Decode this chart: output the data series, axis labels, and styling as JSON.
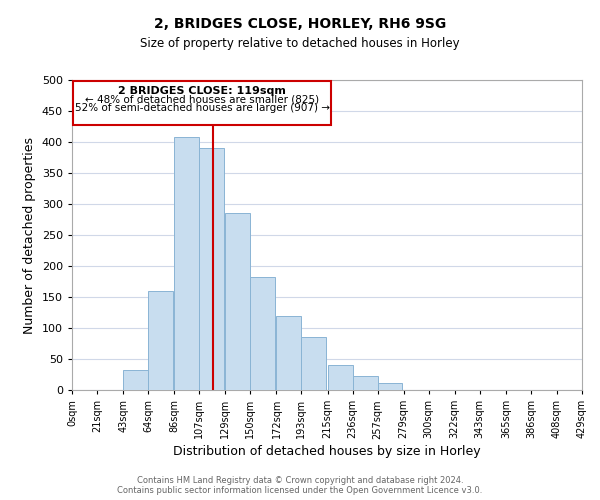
{
  "title": "2, BRIDGES CLOSE, HORLEY, RH6 9SG",
  "subtitle": "Size of property relative to detached houses in Horley",
  "xlabel": "Distribution of detached houses by size in Horley",
  "ylabel": "Number of detached properties",
  "bar_left_edges": [
    0,
    21,
    43,
    64,
    86,
    107,
    129,
    150,
    172,
    193,
    215,
    236,
    257,
    279,
    300,
    322,
    343,
    365,
    386,
    408
  ],
  "bar_heights": [
    0,
    0,
    33,
    160,
    408,
    390,
    285,
    183,
    120,
    85,
    40,
    22,
    12,
    0,
    0,
    0,
    0,
    0,
    0,
    0
  ],
  "bin_width": 21,
  "bar_color": "#c8ddef",
  "bar_edgecolor": "#8ab4d4",
  "vline_x": 119,
  "vline_color": "#cc0000",
  "ylim": [
    0,
    500
  ],
  "yticks": [
    0,
    50,
    100,
    150,
    200,
    250,
    300,
    350,
    400,
    450,
    500
  ],
  "xtick_labels": [
    "0sqm",
    "21sqm",
    "43sqm",
    "64sqm",
    "86sqm",
    "107sqm",
    "129sqm",
    "150sqm",
    "172sqm",
    "193sqm",
    "215sqm",
    "236sqm",
    "257sqm",
    "279sqm",
    "300sqm",
    "322sqm",
    "343sqm",
    "365sqm",
    "386sqm",
    "408sqm",
    "429sqm"
  ],
  "annotation_title": "2 BRIDGES CLOSE: 119sqm",
  "annotation_line1": "← 48% of detached houses are smaller (825)",
  "annotation_line2": "52% of semi-detached houses are larger (907) →",
  "footer_line1": "Contains HM Land Registry data © Crown copyright and database right 2024.",
  "footer_line2": "Contains public sector information licensed under the Open Government Licence v3.0.",
  "background_color": "#ffffff",
  "grid_color": "#d0d8e8"
}
